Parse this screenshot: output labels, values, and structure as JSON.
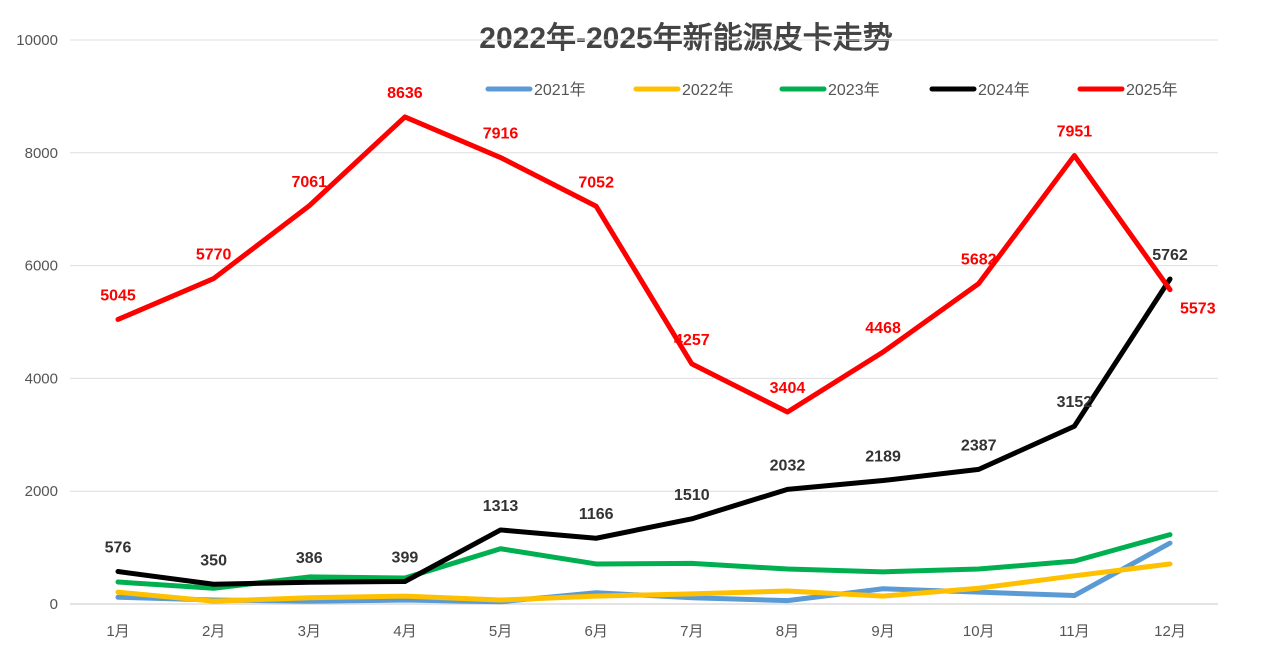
{
  "chart_data": {
    "type": "line",
    "title": "2022年-2025年新能源皮卡走势",
    "xlabel": "",
    "ylabel": "",
    "categories": [
      "1月",
      "2月",
      "3月",
      "4月",
      "5月",
      "6月",
      "7月",
      "8月",
      "9月",
      "10月",
      "11月",
      "12月"
    ],
    "ylim": [
      0,
      10000
    ],
    "yticks": [
      0,
      2000,
      4000,
      6000,
      8000,
      10000
    ],
    "grid": true,
    "legend_position": "top",
    "series": [
      {
        "name": "2021年",
        "color": "#5b9bd5",
        "labeled": false,
        "values": [
          120,
          70,
          50,
          70,
          40,
          200,
          110,
          60,
          270,
          210,
          150,
          1080
        ]
      },
      {
        "name": "2022年",
        "color": "#ffc000",
        "labeled": false,
        "values": [
          210,
          50,
          110,
          140,
          70,
          140,
          180,
          230,
          140,
          280,
          500,
          710
        ]
      },
      {
        "name": "2023年",
        "color": "#00b050",
        "labeled": false,
        "values": [
          390,
          280,
          480,
          460,
          980,
          710,
          720,
          620,
          570,
          620,
          760,
          1230
        ]
      },
      {
        "name": "2024年",
        "color": "#000000",
        "labeled": true,
        "label_color": "#333333",
        "values": [
          576,
          350,
          386,
          399,
          1313,
          1166,
          1510,
          2032,
          2189,
          2387,
          3152,
          5762
        ]
      },
      {
        "name": "2025年",
        "color": "#ff0000",
        "labeled": true,
        "label_color": "#ff0000",
        "values": [
          5045,
          5770,
          7061,
          8636,
          7916,
          7052,
          4257,
          3404,
          4468,
          5682,
          7951,
          5573
        ]
      }
    ]
  }
}
